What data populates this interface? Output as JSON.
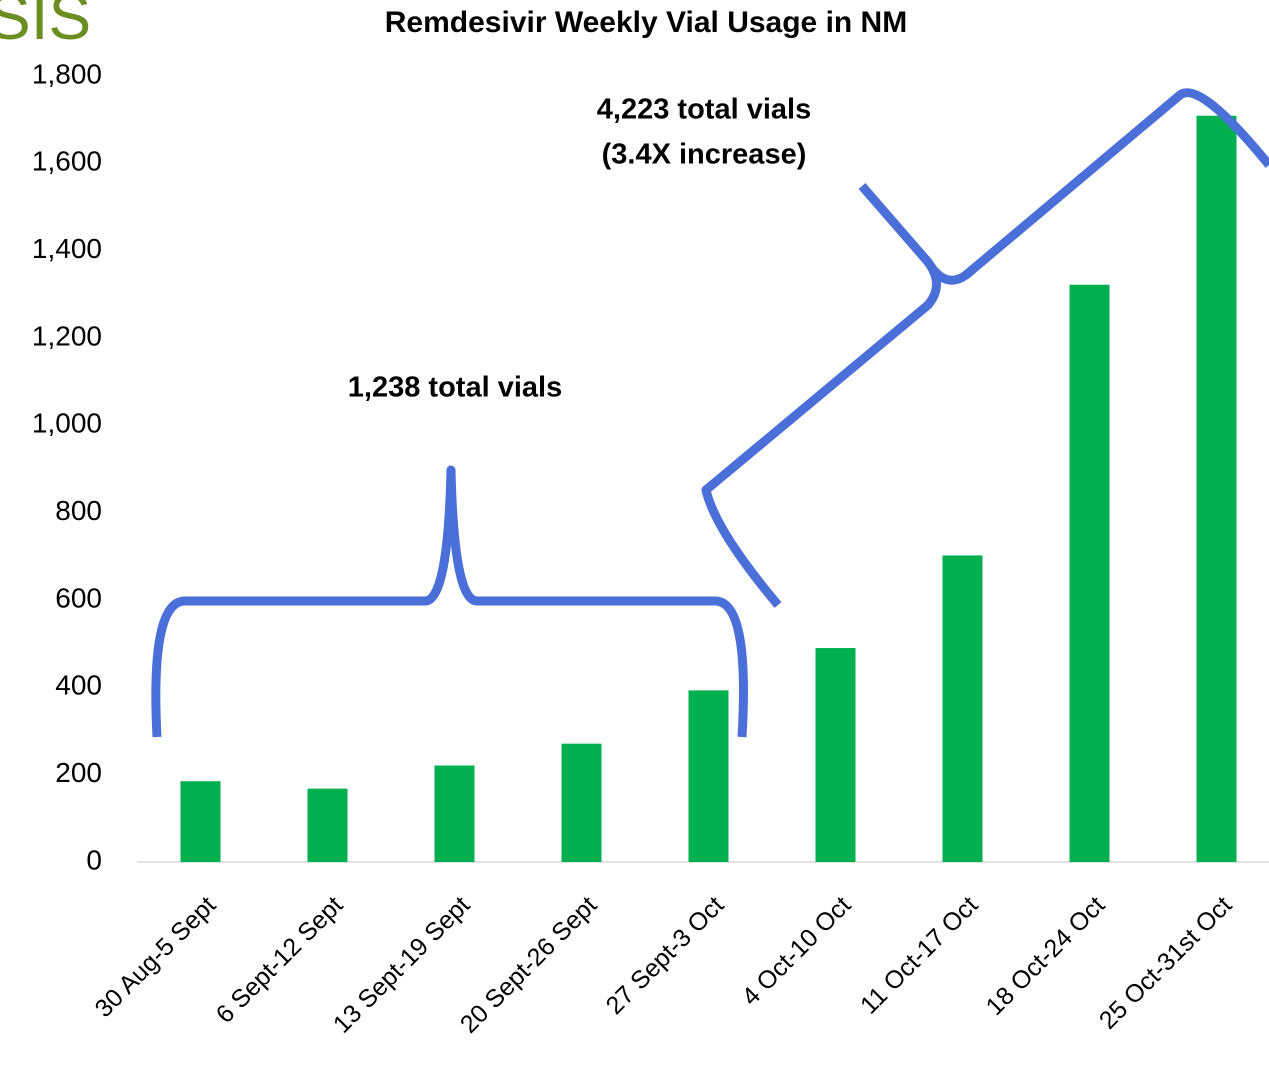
{
  "header_text": "SIS",
  "chart_data": {
    "type": "bar",
    "title": "Remdesivir Weekly Vial Usage in NM",
    "categories": [
      "30 Aug-5 Sept",
      "6 Sept-12 Sept",
      "13 Sept-19 Sept",
      "20 Sept-26 Sept",
      "27 Sept-3 Oct",
      "4 Oct-10 Oct",
      "11 Oct-17 Oct",
      "18 Oct-24 Oct",
      "25 Oct-31st Oct"
    ],
    "values": [
      185,
      168,
      221,
      271,
      393,
      490,
      702,
      1322,
      1709
    ],
    "color": "#00b050",
    "ylim": [
      0,
      1800
    ],
    "yticks": [
      0,
      200,
      400,
      600,
      800,
      {
        "value": 1000,
        "label": "1,000"
      },
      {
        "value": 1200,
        "label": "1,200"
      },
      {
        "value": 1400,
        "label": "1,400"
      },
      {
        "value": 1600,
        "label": "1,600"
      },
      {
        "value": 1800,
        "label": "1,800"
      }
    ],
    "grid": false,
    "annotations": [
      "1,238 total vials",
      "4,223 total vials",
      "(3.4X increase)"
    ]
  }
}
